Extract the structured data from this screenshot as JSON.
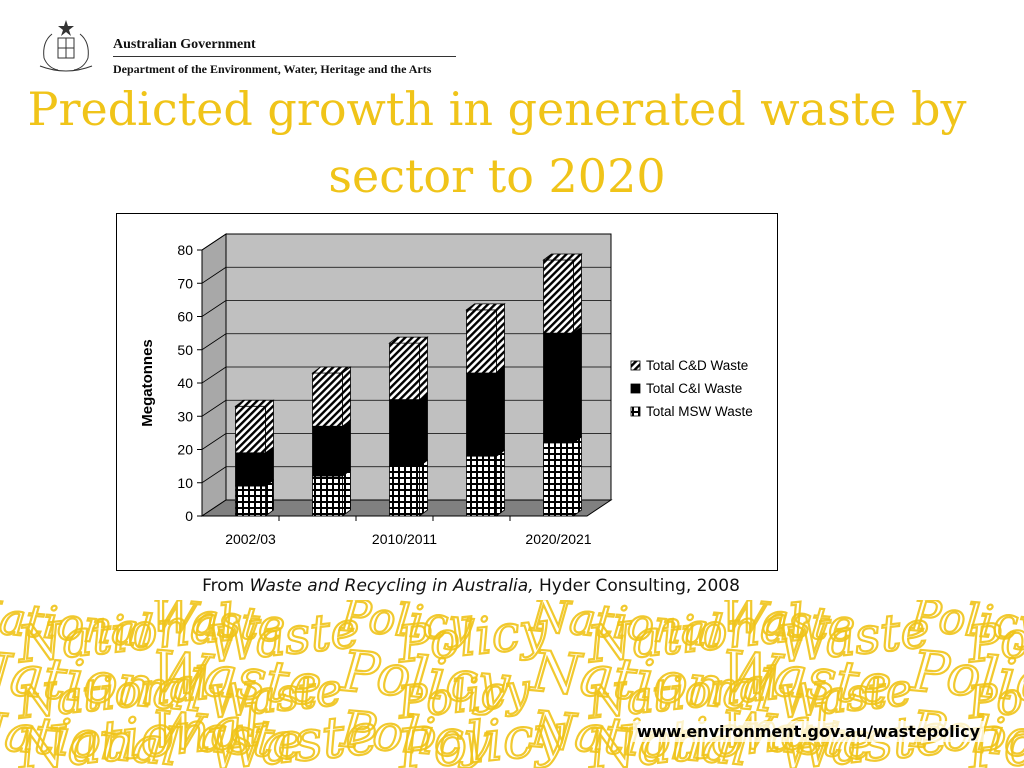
{
  "header": {
    "org_line1": "Australian Government",
    "org_line2": "Department of the Environment, Water, Heritage and the Arts"
  },
  "slide": {
    "title": "Predicted growth in generated waste by sector to 2020",
    "caption_prefix": "From ",
    "caption_italic": "Waste and Recycling in Australia,",
    "caption_suffix": " Hyder Consulting, 2008",
    "url": "www.environment.gov.au/wastepolicy",
    "accent_color": "#f0c419"
  },
  "footer_background": {
    "words": [
      "National",
      "Waste",
      "Policy"
    ],
    "color": "#f0c419"
  },
  "chart_data": {
    "type": "bar",
    "stacked": true,
    "three_d": true,
    "title": "",
    "xlabel": "",
    "ylabel": "Megatonnes",
    "ylim": [
      0,
      80
    ],
    "yticks": [
      0,
      10,
      20,
      30,
      40,
      50,
      60,
      70,
      80
    ],
    "categories": [
      "2002/03",
      "",
      "2010/2011",
      "",
      "2020/2021"
    ],
    "series": [
      {
        "name": "Total MSW Waste",
        "values": [
          9,
          12,
          15,
          18,
          22
        ],
        "pattern": "grid"
      },
      {
        "name": "Total C&I Waste",
        "values": [
          10,
          15,
          20,
          25,
          33
        ],
        "pattern": "solid"
      },
      {
        "name": "Total C&D Waste",
        "values": [
          14,
          16,
          17,
          19,
          22
        ],
        "pattern": "diagonal"
      }
    ],
    "legend_order": [
      "Total C&D Waste",
      "Total C&I Waste",
      "Total MSW Waste"
    ],
    "legend_position": "right",
    "grid": true,
    "wall_color": "#c0c0c0",
    "floor_color": "#808080"
  }
}
